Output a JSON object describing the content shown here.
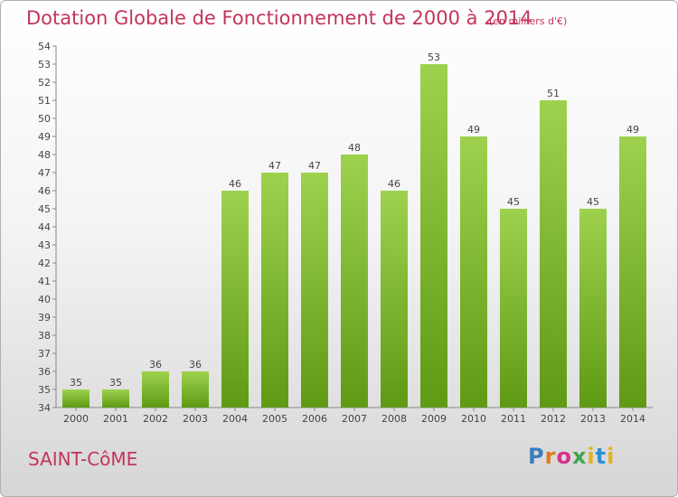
{
  "title": "Dotation Globale de Fonctionnement de 2000 à 2014",
  "subtitle": "(en milliers d'€)",
  "commune": "SAINT-CôME",
  "logo": {
    "p": "P",
    "r": "r",
    "o": "o",
    "x": "x",
    "i1": "i",
    "t": "t",
    "i2": "i"
  },
  "chart_data": {
    "type": "bar",
    "categories": [
      "2000",
      "2001",
      "2002",
      "2003",
      "2004",
      "2005",
      "2006",
      "2007",
      "2008",
      "2009",
      "2010",
      "2011",
      "2012",
      "2013",
      "2014"
    ],
    "values": [
      35,
      35,
      36,
      36,
      46,
      47,
      47,
      48,
      46,
      53,
      49,
      45,
      51,
      45,
      49
    ],
    "ylim": [
      34,
      54
    ],
    "yticks": [
      34,
      35,
      36,
      37,
      38,
      39,
      40,
      41,
      42,
      43,
      44,
      45,
      46,
      47,
      48,
      49,
      50,
      51,
      52,
      53,
      54
    ],
    "grid": false,
    "bar_color_top": "#9ed24e",
    "bar_color_bottom": "#5f9a14"
  }
}
